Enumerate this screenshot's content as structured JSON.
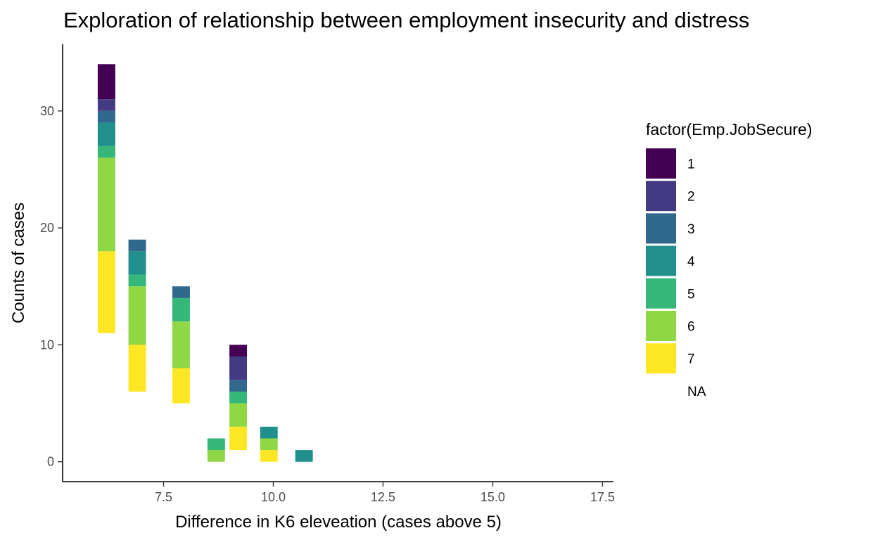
{
  "chart_data": {
    "type": "bar",
    "stacked": true,
    "title": "Exploration of relationship between employment insecurity and distress",
    "xlabel": "Difference in K6 eleveation (cases above 5)",
    "ylabel": "Counts of cases",
    "xlim": [
      5.2,
      17.75
    ],
    "ylim": [
      -1.7,
      35.7
    ],
    "x_ticks": [
      7.5,
      10.0,
      12.5,
      15.0,
      17.5
    ],
    "x_tick_labels": [
      "7.5",
      "10.0",
      "12.5",
      "15.0",
      "17.5"
    ],
    "y_ticks": [
      0,
      10,
      20,
      30
    ],
    "y_tick_labels": [
      "0",
      "10",
      "20",
      "30"
    ],
    "grid": false,
    "bin_width": 0.4,
    "legend": {
      "title": "factor(Emp.JobSecure)",
      "position": "right",
      "entries": [
        {
          "label": "1",
          "color": "#440154"
        },
        {
          "label": "2",
          "color": "#443A83"
        },
        {
          "label": "3",
          "color": "#31688E"
        },
        {
          "label": "4",
          "color": "#21908C"
        },
        {
          "label": "5",
          "color": "#35B779"
        },
        {
          "label": "6",
          "color": "#8FD744"
        },
        {
          "label": "7",
          "color": "#FDE725"
        },
        {
          "label": "NA",
          "color": "#ffffff"
        }
      ]
    },
    "bars": [
      {
        "x": 6.2,
        "segments": [
          {
            "group": "NA",
            "value": 11
          },
          {
            "group": "7",
            "value": 7
          },
          {
            "group": "6",
            "value": 8
          },
          {
            "group": "5",
            "value": 1
          },
          {
            "group": "4",
            "value": 2
          },
          {
            "group": "3",
            "value": 1
          },
          {
            "group": "2",
            "value": 1
          },
          {
            "group": "1",
            "value": 3
          }
        ]
      },
      {
        "x": 6.9,
        "segments": [
          {
            "group": "NA",
            "value": 6
          },
          {
            "group": "7",
            "value": 4
          },
          {
            "group": "6",
            "value": 5
          },
          {
            "group": "5",
            "value": 1
          },
          {
            "group": "4",
            "value": 2
          },
          {
            "group": "3",
            "value": 1
          }
        ]
      },
      {
        "x": 7.9,
        "segments": [
          {
            "group": "NA",
            "value": 5
          },
          {
            "group": "7",
            "value": 3
          },
          {
            "group": "6",
            "value": 4
          },
          {
            "group": "5",
            "value": 2
          },
          {
            "group": "3",
            "value": 1
          }
        ]
      },
      {
        "x": 8.7,
        "segments": [
          {
            "group": "6",
            "value": 1
          },
          {
            "group": "5",
            "value": 1
          }
        ]
      },
      {
        "x": 9.2,
        "segments": [
          {
            "group": "NA",
            "value": 1
          },
          {
            "group": "7",
            "value": 2
          },
          {
            "group": "6",
            "value": 2
          },
          {
            "group": "5",
            "value": 1
          },
          {
            "group": "3",
            "value": 1
          },
          {
            "group": "2",
            "value": 2
          },
          {
            "group": "1",
            "value": 1
          }
        ]
      },
      {
        "x": 9.9,
        "segments": [
          {
            "group": "7",
            "value": 1
          },
          {
            "group": "6",
            "value": 1
          },
          {
            "group": "4",
            "value": 1
          }
        ]
      },
      {
        "x": 10.7,
        "segments": [
          {
            "group": "4",
            "value": 1
          }
        ]
      }
    ]
  }
}
